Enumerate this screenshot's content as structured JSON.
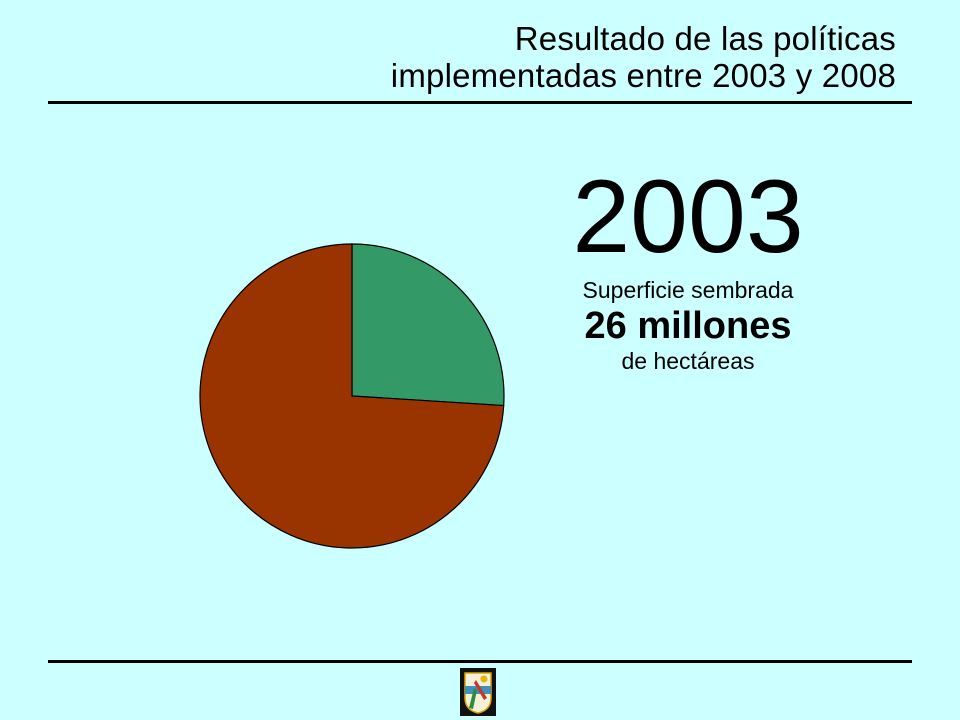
{
  "title": {
    "line1": "Resultado de las políticas",
    "line2": "implementadas entre 2003 y 2008"
  },
  "summary": {
    "year": "2003",
    "caption1": "Superficie sembrada",
    "value": "26 millones",
    "caption3": "de hectáreas"
  },
  "chart_data": {
    "type": "pie",
    "title": "",
    "slices": [
      {
        "value": 26,
        "color": "#339966"
      },
      {
        "value": 74,
        "color": "#993300"
      }
    ],
    "start_angle": "12 o'clock",
    "direction": "clockwise",
    "legend": "none"
  },
  "logo": {
    "icon": "emblem-icon"
  }
}
